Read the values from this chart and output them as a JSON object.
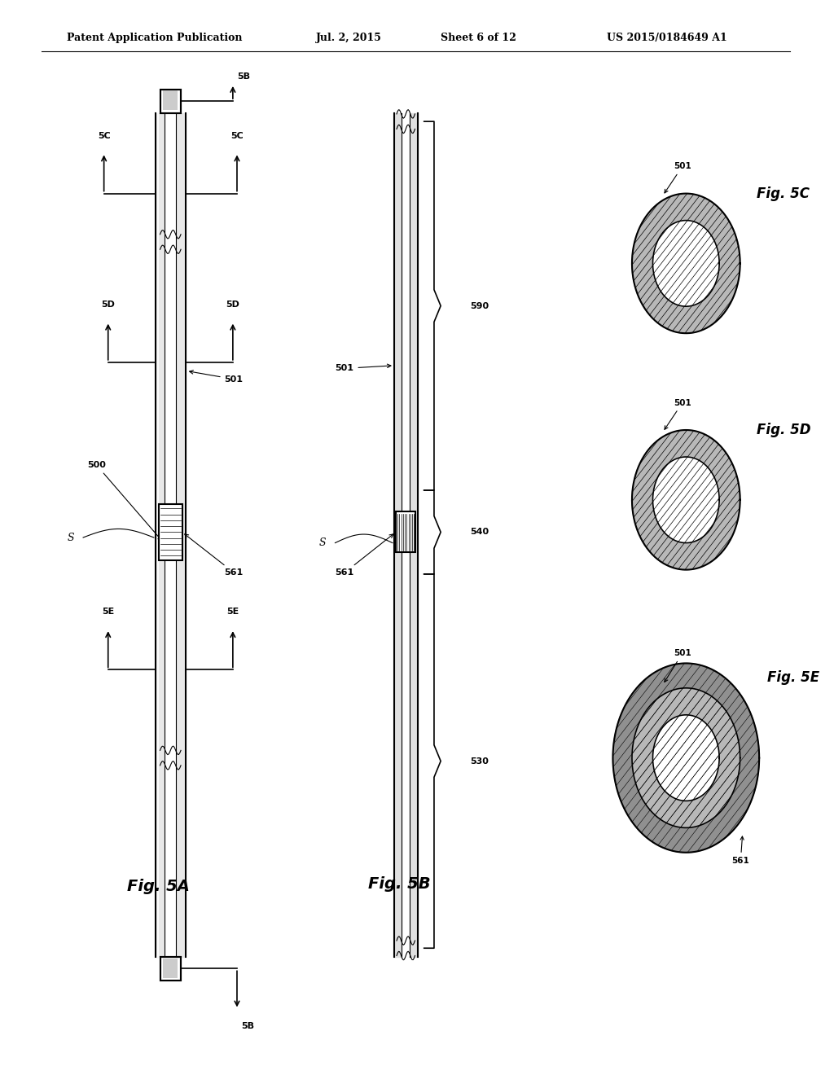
{
  "bg_color": "#ffffff",
  "header_text": "Patent Application Publication",
  "header_date": "Jul. 2, 2015",
  "header_sheet": "Sheet 6 of 12",
  "header_patent": "US 2015/0184649 A1"
}
